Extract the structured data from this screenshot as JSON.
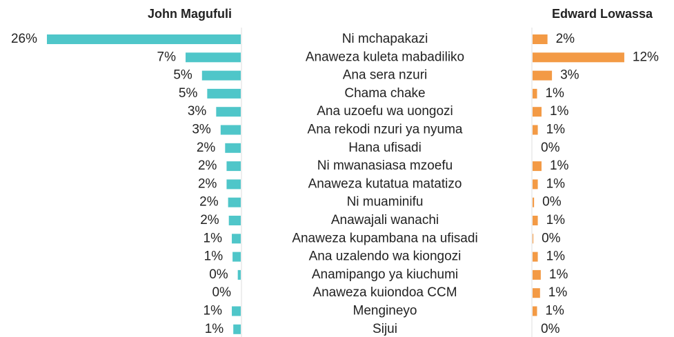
{
  "chart_data": {
    "type": "butterfly",
    "categories": [
      "Ni mchapakazi",
      "Anaweza kuleta mabadiliko",
      "Ana sera nzuri",
      "Chama chake",
      "Ana uzoefu wa uongozi",
      "Ana rekodi nzuri ya nyuma",
      "Hana ufisadi",
      "Ni mwanasiasa mzoefu",
      "Anaweza kutatua matatizo",
      "Ni muaminifu",
      "Anawajali wanachi",
      "Anaweza kupambana na ufisadi",
      "Ana uzalendo wa kiongozi",
      "Anamipango ya kiuchumi",
      "Anaweza kuiondoa CCM",
      "Mengineyo",
      "Sijui"
    ],
    "xlim": [
      0,
      26
    ],
    "series": [
      {
        "name": "John Magufuli",
        "color": "#4fc6c9",
        "values": [
          26,
          7.4,
          5.2,
          4.5,
          3.3,
          2.7,
          2.1,
          1.9,
          1.9,
          1.7,
          1.6,
          1.2,
          1.1,
          0.4,
          0,
          1.2,
          1.0
        ],
        "value_labels": [
          "26%",
          "7%",
          "5%",
          "5%",
          "3%",
          "3%",
          "2%",
          "2%",
          "2%",
          "2%",
          "2%",
          "1%",
          "1%",
          "0%",
          "0%",
          "1%",
          "1%"
        ]
      },
      {
        "name": "Edward Lowassa",
        "color": "#f39a45",
        "values": [
          2.0,
          12.3,
          2.6,
          0.6,
          1.2,
          0.7,
          0,
          1.2,
          0.7,
          0.2,
          0.7,
          0.1,
          0.7,
          1.1,
          1.0,
          0.6,
          0
        ],
        "value_labels": [
          "2%",
          "12%",
          "3%",
          "1%",
          "1%",
          "1%",
          "0%",
          "1%",
          "1%",
          "0%",
          "1%",
          "0%",
          "1%",
          "1%",
          "1%",
          "1%",
          "0%"
        ]
      }
    ]
  }
}
